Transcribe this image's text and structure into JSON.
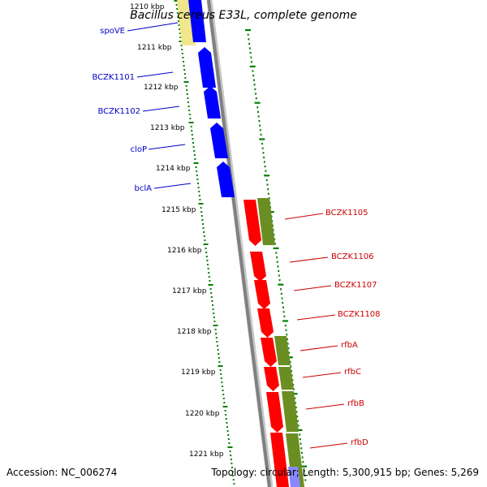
{
  "title": "Bacillus cereus E33L, complete genome",
  "accession": "Accession: NC_006274",
  "topology": "Topology: circular; Length: 5,300,915 bp; Genes: 5,269",
  "ruler_labels": [
    "1210 kbp",
    "1211 kbp",
    "1212 kbp",
    "1213 kbp",
    "1214 kbp",
    "1215 kbp",
    "1216 kbp",
    "1217 kbp",
    "1218 kbp",
    "1219 kbp",
    "1220 kbp",
    "1221 kbp"
  ],
  "left_genes": [
    "spoVE",
    "BCZK1101",
    "BCZK1102",
    "cloP",
    "bclA"
  ],
  "right_genes": [
    "BCZK1105",
    "BCZK1106",
    "BCZK1107",
    "BCZK1108",
    "rfbA",
    "rfbC",
    "rfbB",
    "rfbD"
  ],
  "colors": {
    "forward_cds": "#0000ff",
    "reverse_cds": "#ff0000",
    "cog_track": "#6b8e23",
    "backbone": "#808080",
    "ruler_ticks": "#008000",
    "left_label": "#0000cc",
    "right_label": "#cc0000",
    "pale_feature": "#f0e68c"
  }
}
